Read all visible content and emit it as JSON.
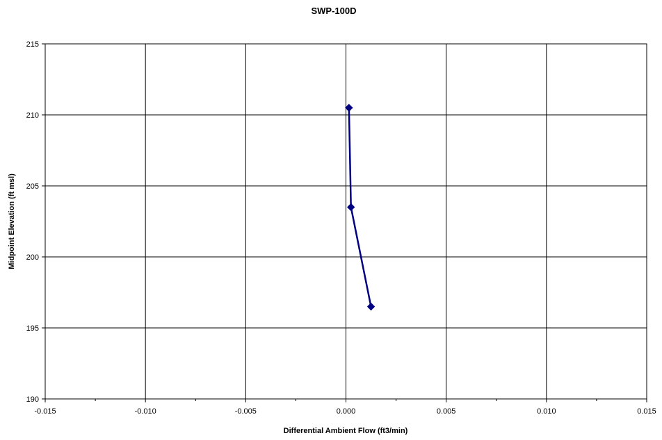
{
  "chart_data": {
    "type": "line",
    "title": "SWP-100D",
    "xlabel": "Differential Ambient Flow (ft3/min)",
    "ylabel": "Midpoint Elevation (ft msl)",
    "xlim": [
      -0.015,
      0.015
    ],
    "ylim": [
      190,
      215
    ],
    "x_ticks": [
      -0.015,
      -0.01,
      -0.005,
      0.0,
      0.005,
      0.01,
      0.015
    ],
    "x_tick_labels": [
      "-0.015",
      "-0.010",
      "-0.005",
      "0.000",
      "0.005",
      "0.010",
      "0.015"
    ],
    "y_ticks": [
      190,
      195,
      200,
      205,
      210,
      215
    ],
    "y_tick_labels": [
      "190",
      "195",
      "200",
      "205",
      "210",
      "215"
    ],
    "grid": true,
    "legend": "none",
    "series": [
      {
        "color": "#000080",
        "marker": "diamond",
        "points": [
          {
            "x": 0.00015,
            "y": 210.5
          },
          {
            "x": 0.00025,
            "y": 203.5
          },
          {
            "x": 0.00125,
            "y": 196.5
          }
        ]
      }
    ]
  }
}
